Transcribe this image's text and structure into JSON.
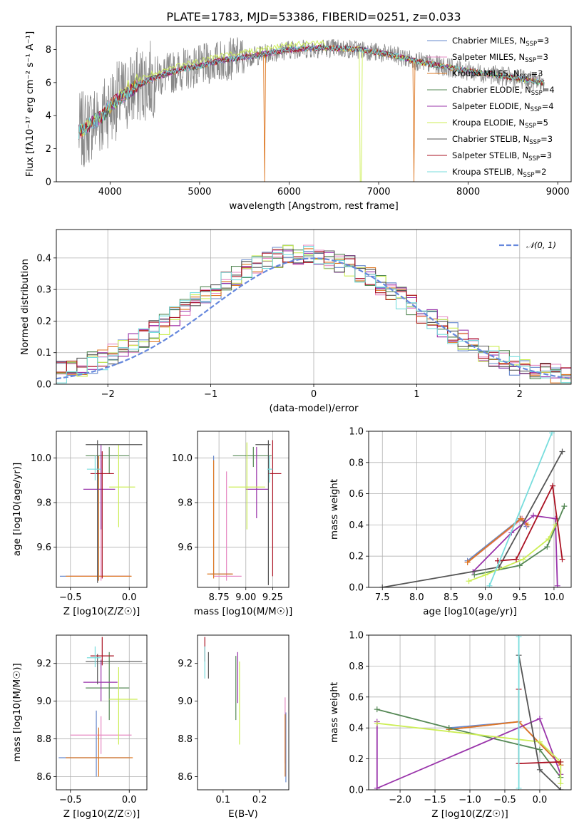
{
  "figure": {
    "title": "PLATE=1783, MJD=53386, FIBERID=0251, z=0.033"
  },
  "models": [
    {
      "name": "Chabrier MILES",
      "nssp": "3",
      "color": "#6688cc"
    },
    {
      "name": "Salpeter MILES",
      "nssp": "3",
      "color": "#e68ac3"
    },
    {
      "name": "Kroupa MILES",
      "nssp": "3",
      "color": "#dd7722"
    },
    {
      "name": "Chabrier ELODIE",
      "nssp": "4",
      "color": "#558855"
    },
    {
      "name": "Salpeter ELODIE",
      "nssp": "4",
      "color": "#9933aa"
    },
    {
      "name": "Kroupa ELODIE",
      "nssp": "5",
      "color": "#ccee55"
    },
    {
      "name": "Chabrier STELIB",
      "nssp": "3",
      "color": "#555555"
    },
    {
      "name": "Salpeter STELIB",
      "nssp": "3",
      "color": "#aa1122"
    },
    {
      "name": "Kroupa STELIB",
      "nssp": "2",
      "color": "#77dddd"
    }
  ],
  "chart_data": [
    {
      "id": "spectrum",
      "type": "line",
      "xlabel": "wavelength [Angstrom, rest frame]",
      "ylabel": "Flux [fλ10⁻¹⁷ erg cm⁻² s⁻¹ A⁻¹]",
      "xlim": [
        3400,
        9150
      ],
      "ylim": [
        0,
        9.4
      ],
      "xticks": [
        4000,
        5000,
        6000,
        7000,
        8000,
        9000
      ],
      "yticks": [
        0,
        2,
        4,
        6,
        8
      ],
      "grid": false,
      "legend": "top-right",
      "continuum": {
        "x": [
          3650,
          3700,
          3800,
          3900,
          4000,
          4100,
          4300,
          4500,
          4800,
          5000,
          5300,
          5600,
          6000,
          6400,
          6800,
          7200,
          7500,
          8000,
          8500,
          8850
        ],
        "y": [
          3.0,
          3.1,
          3.6,
          3.9,
          4.6,
          5.0,
          5.8,
          6.3,
          6.8,
          7.0,
          7.4,
          7.6,
          8.0,
          8.1,
          8.0,
          7.6,
          7.2,
          6.7,
          6.3,
          6.0
        ]
      }
    },
    {
      "id": "residuals",
      "type": "bar",
      "xlabel": "(data-model)/error",
      "ylabel": "Normed distribution",
      "xlim": [
        -2.5,
        2.5
      ],
      "ylim": [
        0,
        0.49
      ],
      "xticks": [
        -2,
        -1,
        0,
        1,
        2
      ],
      "yticks": [
        0.0,
        0.1,
        0.2,
        0.3,
        0.4
      ],
      "grid": true,
      "legend": "top-right",
      "reference": {
        "name": "𝒩(0, 1)",
        "mean": 0,
        "sigma": 1,
        "color": "#6688dd"
      },
      "bin_width": 0.1
    },
    {
      "id": "age_vs_Z",
      "type": "scatter",
      "xlabel": "Z [log10(Z/Z☉)]",
      "ylabel": "age [log10(age/yr)]",
      "xlim": [
        -0.62,
        0.15
      ],
      "ylim": [
        9.42,
        10.12
      ],
      "xticks": [
        -0.5,
        0.0
      ],
      "yticks": [
        9.6,
        9.8,
        10.0
      ],
      "grid": true,
      "points": [
        {
          "x": -0.27,
          "y": 9.47,
          "xerr": [
            0.32,
            0.28
          ],
          "yerr": [
            0.02,
            0.54
          ]
        },
        {
          "x": -0.24,
          "y": 9.47,
          "xerr": [
            0.26,
            0.25
          ],
          "yerr": [
            0.02,
            0.52
          ]
        },
        {
          "x": -0.26,
          "y": 9.47,
          "xerr": [
            0.28,
            0.28
          ],
          "yerr": [
            0.02,
            0.54
          ]
        },
        {
          "x": -0.17,
          "y": 10.01,
          "xerr": [
            0.2,
            0.17
          ],
          "yerr": [
            0.08,
            0.04
          ]
        },
        {
          "x": -0.24,
          "y": 9.86,
          "xerr": [
            0.15,
            0.12
          ],
          "yerr": [
            0.18,
            0.2
          ]
        },
        {
          "x": -0.09,
          "y": 9.87,
          "xerr": [
            0.08,
            0.14
          ],
          "yerr": [
            0.18,
            0.19
          ]
        },
        {
          "x": -0.27,
          "y": 10.06,
          "xerr": [
            0.1,
            0.38
          ],
          "yerr": [
            0.62,
            0.02
          ]
        },
        {
          "x": -0.23,
          "y": 9.93,
          "xerr": [
            0.1,
            0.1
          ],
          "yerr": [
            0.47,
            0.1
          ]
        },
        {
          "x": -0.29,
          "y": 9.95,
          "xerr": [
            0.07,
            0.05
          ],
          "yerr": [
            0.05,
            0.06
          ]
        }
      ]
    },
    {
      "id": "age_vs_mass",
      "type": "scatter",
      "xlabel": "mass [log10(M/M☉)]",
      "ylabel": "",
      "xlim": [
        8.55,
        9.4
      ],
      "ylim": [
        9.42,
        10.12
      ],
      "xticks": [
        8.75,
        9.0,
        9.25
      ],
      "yticks": [
        9.6,
        9.8,
        10.0
      ],
      "grid": true,
      "points": [
        {
          "x": 8.7,
          "y": 9.48,
          "xerr": [
            0.03,
            0.17
          ],
          "yerr": [
            0.01,
            0.53
          ]
        },
        {
          "x": 8.82,
          "y": 9.47,
          "xerr": [
            0.12,
            0.14
          ],
          "yerr": [
            0.02,
            0.47
          ]
        },
        {
          "x": 8.7,
          "y": 9.48,
          "xerr": [
            0.06,
            0.18
          ],
          "yerr": [
            0.02,
            0.51
          ]
        },
        {
          "x": 9.07,
          "y": 10.01,
          "xerr": [
            0.19,
            0.17
          ],
          "yerr": [
            0.05,
            0.04
          ]
        },
        {
          "x": 9.1,
          "y": 9.86,
          "xerr": [
            0.1,
            0.11
          ],
          "yerr": [
            0.13,
            0.19
          ]
        },
        {
          "x": 9.01,
          "y": 9.87,
          "xerr": [
            0.17,
            0.17
          ],
          "yerr": [
            0.19,
            0.2
          ]
        },
        {
          "x": 9.21,
          "y": 10.06,
          "xerr": [
            0.12,
            0.02
          ],
          "yerr": [
            0.63,
            0.02
          ]
        },
        {
          "x": 9.25,
          "y": 9.93,
          "xerr": [
            0.04,
            0.08
          ],
          "yerr": [
            0.46,
            0.15
          ]
        },
        {
          "x": 9.22,
          "y": 9.95,
          "xerr": [
            0.02,
            0.03
          ],
          "yerr": [
            0.06,
            0.06
          ]
        }
      ]
    },
    {
      "id": "weight_vs_age",
      "type": "line",
      "xlabel": "age [log10(age/yr)]",
      "ylabel": "mass weight",
      "xlim": [
        7.3,
        10.25
      ],
      "ylim": [
        0,
        1
      ],
      "xticks": [
        7.5,
        8.0,
        8.5,
        9.0,
        9.5,
        10.0
      ],
      "yticks": [
        0.0,
        0.2,
        0.4,
        0.6,
        0.8,
        1.0
      ],
      "grid": true,
      "series": [
        {
          "x": [
            8.74,
            9.51,
            9.6
          ],
          "y": [
            0.17,
            0.44,
            0.39
          ]
        },
        {
          "x": [
            8.74,
            9.54,
            9.6
          ],
          "y": [
            0.16,
            0.44,
            0.4
          ]
        },
        {
          "x": [
            8.74,
            9.52,
            9.62
          ],
          "y": [
            0.16,
            0.44,
            0.4
          ]
        },
        {
          "x": [
            8.84,
            9.5,
            9.9,
            10.15
          ],
          "y": [
            0.08,
            0.14,
            0.26,
            0.52
          ]
        },
        {
          "x": [
            8.82,
            9.38,
            9.7,
            10.02,
            10.05
          ],
          "y": [
            0.1,
            0.35,
            0.46,
            0.44,
            0.01
          ]
        },
        {
          "x": [
            8.76,
            9.0,
            9.55,
            9.92,
            10.02
          ],
          "y": [
            0.04,
            0.08,
            0.18,
            0.31,
            0.4
          ]
        },
        {
          "x": [
            7.5,
            9.2,
            10.12
          ],
          "y": [
            0.0,
            0.13,
            0.87
          ]
        },
        {
          "x": [
            9.18,
            9.45,
            9.98,
            10.12
          ],
          "y": [
            0.17,
            0.18,
            0.65,
            0.18
          ]
        },
        {
          "x": [
            9.06,
            9.97
          ],
          "y": [
            0.01,
            0.99
          ]
        }
      ]
    },
    {
      "id": "mass_vs_Z",
      "type": "scatter",
      "xlabel": "Z [log10(Z/Z☉)]",
      "ylabel": "mass [log10(M/M☉)]",
      "xlim": [
        -0.62,
        0.15
      ],
      "ylim": [
        8.53,
        9.35
      ],
      "xticks": [
        -0.5,
        0.0
      ],
      "yticks": [
        8.6,
        8.8,
        9.0,
        9.2
      ],
      "grid": true,
      "points": [
        {
          "x": -0.28,
          "y": 8.7,
          "xerr": [
            0.32,
            0.28
          ],
          "yerr": [
            0.1,
            0.25
          ]
        },
        {
          "x": -0.24,
          "y": 8.82,
          "xerr": [
            0.26,
            0.26
          ],
          "yerr": [
            0.1,
            0.1
          ]
        },
        {
          "x": -0.26,
          "y": 8.7,
          "xerr": [
            0.28,
            0.29
          ],
          "yerr": [
            0.1,
            0.16
          ]
        },
        {
          "x": -0.17,
          "y": 9.07,
          "xerr": [
            0.2,
            0.17
          ],
          "yerr": [
            0.17,
            0.19
          ]
        },
        {
          "x": -0.24,
          "y": 9.1,
          "xerr": [
            0.15,
            0.14
          ],
          "yerr": [
            0.1,
            0.12
          ]
        },
        {
          "x": -0.09,
          "y": 9.01,
          "xerr": [
            0.08,
            0.16
          ],
          "yerr": [
            0.24,
            0.17
          ]
        },
        {
          "x": -0.27,
          "y": 9.21,
          "xerr": [
            0.1,
            0.38
          ],
          "yerr": [
            0.12,
            0.04
          ]
        },
        {
          "x": -0.23,
          "y": 9.24,
          "xerr": [
            0.1,
            0.1
          ],
          "yerr": [
            0.05,
            0.1
          ]
        },
        {
          "x": -0.29,
          "y": 9.23,
          "xerr": [
            0.07,
            0.05
          ],
          "yerr": [
            0.05,
            0.06
          ]
        }
      ]
    },
    {
      "id": "mass_vs_ebv",
      "type": "scatter",
      "xlabel": "E(B-V)",
      "ylabel": "",
      "xlim": [
        0.03,
        0.28
      ],
      "ylim": [
        8.53,
        9.35
      ],
      "xticks": [
        0.1,
        0.2
      ],
      "yticks": [
        8.6,
        8.8,
        9.0,
        9.2
      ],
      "grid": false,
      "points": [
        {
          "x": 0.272,
          "y": 8.8,
          "yerr": [
            0.23,
            0.14
          ]
        },
        {
          "x": 0.27,
          "y": 8.82,
          "yerr": [
            0.15,
            0.2
          ]
        },
        {
          "x": 0.27,
          "y": 8.75,
          "yerr": [
            0.15,
            0.18
          ]
        },
        {
          "x": 0.135,
          "y": 9.07,
          "yerr": [
            0.17,
            0.17
          ]
        },
        {
          "x": 0.14,
          "y": 9.1,
          "yerr": [
            0.11,
            0.16
          ]
        },
        {
          "x": 0.145,
          "y": 9.01,
          "yerr": [
            0.24,
            0.2
          ]
        },
        {
          "x": 0.06,
          "y": 9.21,
          "yerr": [
            0.09,
            0.05
          ]
        },
        {
          "x": 0.05,
          "y": 9.25,
          "yerr": [
            0.04,
            0.09
          ]
        },
        {
          "x": 0.05,
          "y": 9.22,
          "yerr": [
            0.1,
            0.07
          ]
        }
      ]
    },
    {
      "id": "weight_vs_Z",
      "type": "line",
      "xlabel": "Z [log10(Z/Z☉)]",
      "ylabel": "mass weight",
      "xlim": [
        -2.45,
        0.45
      ],
      "ylim": [
        0,
        1
      ],
      "xticks": [
        -2.0,
        -1.5,
        -1.0,
        -0.5,
        0.0
      ],
      "yticks": [
        0.0,
        0.2,
        0.4,
        0.6,
        0.8,
        1.0
      ],
      "grid": true,
      "series": [
        {
          "x": [
            -1.3,
            -0.3,
            0.3
          ],
          "y": [
            0.4,
            0.44,
            0.16
          ]
        },
        {
          "x": [
            -1.3,
            -0.3,
            0.3
          ],
          "y": [
            0.39,
            0.44,
            0.16
          ]
        },
        {
          "x": [
            -1.3,
            -0.3,
            0.3
          ],
          "y": [
            0.39,
            0.44,
            0.16
          ]
        },
        {
          "x": [
            -2.33,
            -1.3,
            0.0,
            0.3
          ],
          "y": [
            0.52,
            0.4,
            0.26,
            0.08
          ]
        },
        {
          "x": [
            -2.33,
            -2.33,
            0.0,
            0.3
          ],
          "y": [
            0.44,
            0.01,
            0.46,
            0.1
          ]
        },
        {
          "x": [
            -2.33,
            0.0,
            0.3,
            0.3
          ],
          "y": [
            0.43,
            0.31,
            0.18,
            0.04
          ]
        },
        {
          "x": [
            -0.3,
            0.0,
            0.3
          ],
          "y": [
            0.87,
            0.13,
            0.0
          ]
        },
        {
          "x": [
            -0.3,
            -0.3,
            0.3
          ],
          "y": [
            0.65,
            0.17,
            0.18
          ]
        },
        {
          "x": [
            -0.3,
            -0.3
          ],
          "y": [
            0.99,
            0.01
          ]
        }
      ]
    }
  ]
}
